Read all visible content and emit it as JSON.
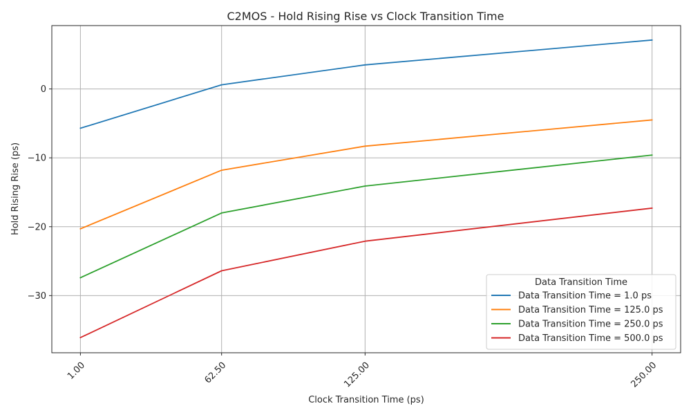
{
  "chart_data": {
    "type": "line",
    "title": "C2MOS - Hold Rising Rise vs Clock Transition Time",
    "xlabel": "Clock Transition Time (ps)",
    "ylabel": "Hold Rising Rise (ps)",
    "x": [
      1.0,
      62.5,
      125.0,
      250.0
    ],
    "x_tick_labels": [
      "1.00",
      "62.50",
      "125.00",
      "250.00"
    ],
    "xlim": [
      -11.45,
      262.45
    ],
    "ylim": [
      -38.3,
      9.2
    ],
    "y_ticks": [
      -30,
      -20,
      -10,
      0
    ],
    "y_tick_labels": [
      "−30",
      "−20",
      "−10",
      "0"
    ],
    "grid": true,
    "legend": {
      "title": "Data Transition Time",
      "placement": "lower-right"
    },
    "series": [
      {
        "name": "Data Transition Time = 1.0 ps",
        "color": "#1f77b4",
        "values": [
          -5.7,
          0.6,
          3.5,
          7.1
        ]
      },
      {
        "name": "Data Transition Time = 125.0 ps",
        "color": "#ff7f0e",
        "values": [
          -20.3,
          -11.8,
          -8.3,
          -4.5
        ]
      },
      {
        "name": "Data Transition Time = 250.0 ps",
        "color": "#2ca02c",
        "values": [
          -27.4,
          -18.0,
          -14.1,
          -9.6
        ]
      },
      {
        "name": "Data Transition Time = 500.0 ps",
        "color": "#d62728",
        "values": [
          -36.1,
          -26.4,
          -22.1,
          -17.3
        ]
      }
    ]
  }
}
